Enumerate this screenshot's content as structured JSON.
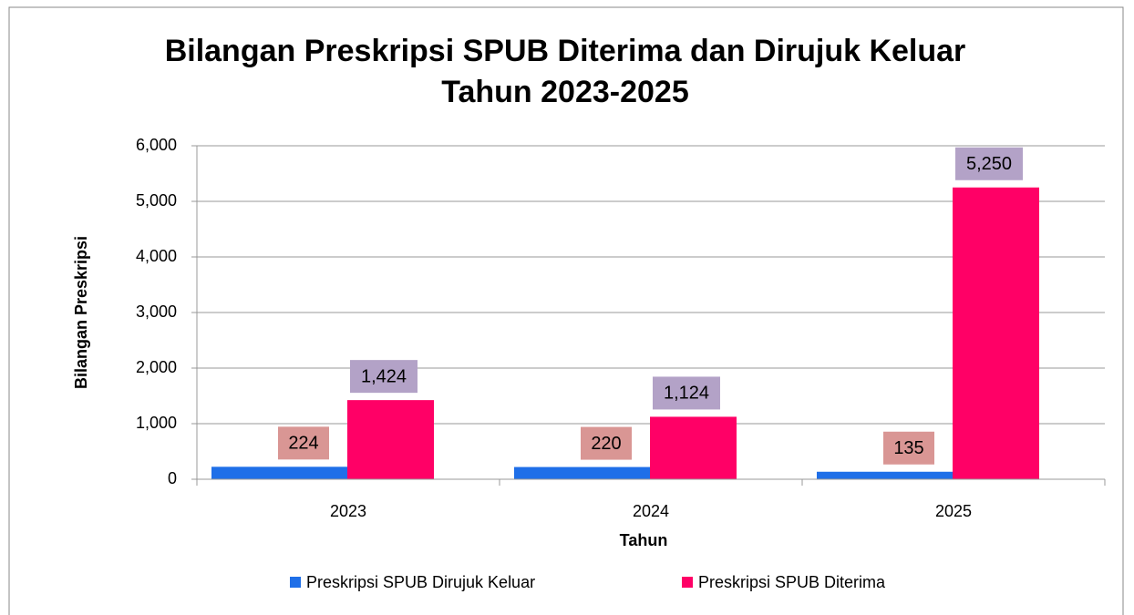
{
  "chart_data": {
    "type": "bar",
    "title": [
      "Bilangan Preskripsi SPUB Diterima dan Dirujuk Keluar",
      "Tahun 2023-2025"
    ],
    "x_label": "Tahun",
    "y_label": "Bilangan Preskripsi",
    "categories": [
      "2023",
      "2024",
      "2025"
    ],
    "series": [
      {
        "name": "Preskripsi SPUB Dirujuk Keluar",
        "color": "#1f6fe8",
        "label_color": "#d99694",
        "values": [
          224,
          220,
          135
        ]
      },
      {
        "name": "Preskripsi SPUB Diterima",
        "color": "#ff0066",
        "label_color": "#b3a2c7",
        "values": [
          1424,
          1124,
          5250
        ],
        "value_labels": [
          "1,424",
          "1,124",
          "5,250"
        ]
      }
    ],
    "ylim": [
      0,
      6000
    ],
    "yticks": [
      0,
      {
        "value": 1000,
        "label": "1,000"
      },
      {
        "value": 2000,
        "label": "2,000"
      },
      {
        "value": 3000,
        "label": "3,000"
      },
      {
        "value": 4000,
        "label": "4,000"
      },
      {
        "value": 5000,
        "label": "5,000"
      },
      {
        "value": 6000,
        "label": "6,000"
      }
    ],
    "grid": true,
    "legend": "bottom"
  }
}
